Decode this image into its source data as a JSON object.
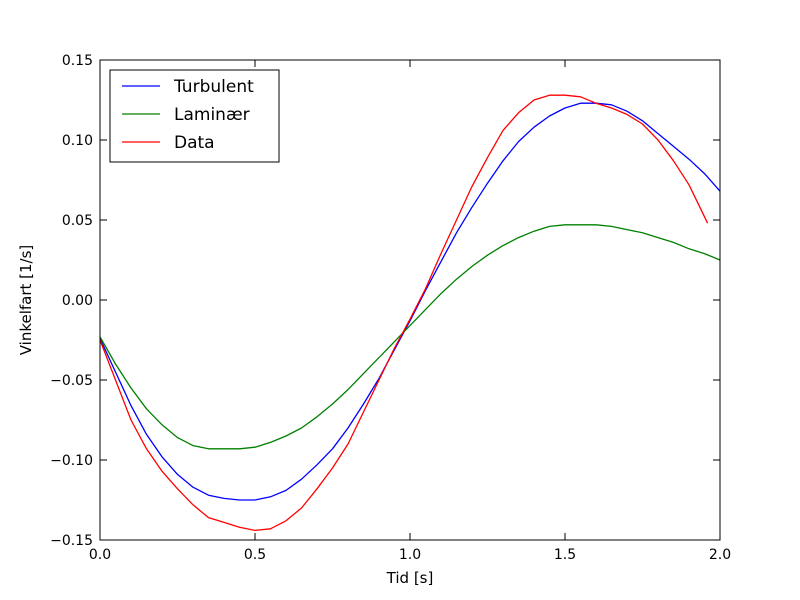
{
  "chart_data": {
    "type": "line",
    "title": "",
    "xlabel": "Tid [s]",
    "ylabel": "Vinkelfart [1/s]",
    "xlim": [
      0.0,
      2.0
    ],
    "ylim": [
      -0.15,
      0.15
    ],
    "xticks": [
      "0.0",
      "0.5",
      "1.0",
      "1.5",
      "2.0"
    ],
    "yticks": [
      "−0.15",
      "−0.10",
      "−0.05",
      "0.00",
      "0.05",
      "0.10",
      "0.15"
    ],
    "grid": false,
    "legend_position": "top-left",
    "series": [
      {
        "name": "Turbulent",
        "color": "#0000ff",
        "x": [
          0.0,
          0.05,
          0.1,
          0.15,
          0.2,
          0.25,
          0.3,
          0.35,
          0.4,
          0.45,
          0.5,
          0.55,
          0.6,
          0.65,
          0.7,
          0.75,
          0.8,
          0.85,
          0.9,
          0.95,
          1.0,
          1.05,
          1.1,
          1.15,
          1.2,
          1.25,
          1.3,
          1.35,
          1.4,
          1.45,
          1.5,
          1.55,
          1.6,
          1.65,
          1.7,
          1.75,
          1.8,
          1.85,
          1.9,
          1.95,
          2.0
        ],
        "y": [
          -0.024,
          -0.045,
          -0.066,
          -0.084,
          -0.098,
          -0.109,
          -0.117,
          -0.122,
          -0.124,
          -0.125,
          -0.125,
          -0.123,
          -0.119,
          -0.112,
          -0.103,
          -0.093,
          -0.08,
          -0.065,
          -0.049,
          -0.031,
          -0.013,
          0.006,
          0.024,
          0.042,
          0.058,
          0.073,
          0.087,
          0.099,
          0.108,
          0.115,
          0.12,
          0.123,
          0.123,
          0.122,
          0.118,
          0.112,
          0.104,
          0.096,
          0.088,
          0.079,
          0.068
        ]
      },
      {
        "name": "Laminær",
        "color": "#008000",
        "x": [
          0.0,
          0.05,
          0.1,
          0.15,
          0.2,
          0.25,
          0.3,
          0.35,
          0.4,
          0.45,
          0.5,
          0.55,
          0.6,
          0.65,
          0.7,
          0.75,
          0.8,
          0.85,
          0.9,
          0.95,
          1.0,
          1.05,
          1.1,
          1.15,
          1.2,
          1.25,
          1.3,
          1.35,
          1.4,
          1.45,
          1.5,
          1.55,
          1.6,
          1.65,
          1.7,
          1.75,
          1.8,
          1.85,
          1.9,
          1.95,
          2.0
        ],
        "y": [
          -0.023,
          -0.04,
          -0.055,
          -0.068,
          -0.078,
          -0.086,
          -0.091,
          -0.093,
          -0.093,
          -0.093,
          -0.092,
          -0.089,
          -0.085,
          -0.08,
          -0.073,
          -0.065,
          -0.056,
          -0.046,
          -0.036,
          -0.026,
          -0.016,
          -0.006,
          0.004,
          0.013,
          0.021,
          0.028,
          0.034,
          0.039,
          0.043,
          0.046,
          0.047,
          0.047,
          0.047,
          0.046,
          0.044,
          0.042,
          0.039,
          0.036,
          0.032,
          0.029,
          0.025
        ]
      },
      {
        "name": "Data",
        "color": "#ff0000",
        "x": [
          0.0,
          0.05,
          0.1,
          0.15,
          0.2,
          0.25,
          0.3,
          0.35,
          0.4,
          0.45,
          0.5,
          0.55,
          0.6,
          0.65,
          0.7,
          0.75,
          0.8,
          0.85,
          0.9,
          0.95,
          1.0,
          1.05,
          1.1,
          1.15,
          1.2,
          1.25,
          1.3,
          1.35,
          1.4,
          1.45,
          1.5,
          1.55,
          1.6,
          1.65,
          1.7,
          1.75,
          1.8,
          1.85,
          1.9,
          1.96
        ],
        "y": [
          -0.025,
          -0.05,
          -0.075,
          -0.093,
          -0.107,
          -0.118,
          -0.128,
          -0.136,
          -0.139,
          -0.142,
          -0.144,
          -0.143,
          -0.138,
          -0.13,
          -0.118,
          -0.105,
          -0.09,
          -0.07,
          -0.05,
          -0.03,
          -0.012,
          0.007,
          0.029,
          0.05,
          0.071,
          0.089,
          0.106,
          0.117,
          0.125,
          0.128,
          0.128,
          0.127,
          0.123,
          0.12,
          0.116,
          0.11,
          0.1,
          0.087,
          0.072,
          0.048
        ]
      }
    ]
  }
}
